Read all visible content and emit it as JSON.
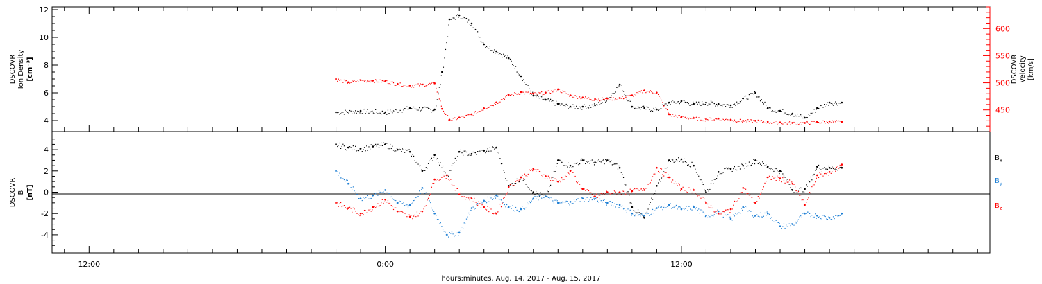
{
  "chart_data": [
    {
      "type": "scatter",
      "panel": "plasma",
      "ylabel_left": [
        "DSCOVR",
        "Ion Density",
        "[cm⁻³]"
      ],
      "ylabel_right": [
        "DSCOVR",
        "Velocity",
        "[km/s]"
      ],
      "ylim_left": [
        3.2,
        12.2
      ],
      "ylim_right": [
        410,
        640
      ],
      "yticks_left": [
        4,
        6,
        8,
        10,
        12
      ],
      "yticks_right": [
        450,
        500,
        550,
        600
      ],
      "colors": {
        "density": "#000000",
        "velocity": "#ff0000"
      },
      "series": [
        {
          "name": "",
          "axis": "left",
          "color": "#000000",
          "x_hours": [
            0,
            1,
            2,
            3,
            4,
            4.3,
            4.6,
            5,
            5.5,
            6,
            6.5,
            7,
            7.5,
            8,
            8.5,
            9,
            9.5,
            10,
            10.5,
            11,
            11.5,
            12,
            12.5,
            13,
            13.5,
            14,
            14.5,
            15,
            15.5,
            16,
            16.5,
            17,
            17.5,
            18,
            18.5,
            19,
            19.5,
            20,
            20.5
          ],
          "values": [
            4.6,
            4.7,
            4.6,
            4.9,
            4.8,
            7.5,
            11.3,
            11.6,
            11.0,
            9.5,
            9.0,
            8.5,
            7.2,
            5.8,
            5.5,
            5.2,
            5.0,
            5.0,
            5.1,
            5.6,
            6.6,
            5.0,
            4.9,
            4.8,
            5.3,
            5.4,
            5.2,
            5.3,
            5.2,
            5.1,
            5.6,
            6.0,
            4.9,
            4.7,
            4.5,
            4.2,
            4.9,
            5.3,
            5.3
          ]
        },
        {
          "name": "",
          "axis": "right",
          "color": "#ff0000",
          "x_hours": [
            0,
            0.5,
            1,
            1.5,
            2,
            2.5,
            3,
            3.5,
            4,
            4.3,
            4.6,
            5,
            5.5,
            6,
            6.5,
            7,
            7.5,
            8,
            8.5,
            9,
            9.5,
            10,
            10.5,
            11,
            11.5,
            12,
            12.5,
            13,
            13.5,
            14,
            14.5,
            15,
            15.5,
            16,
            16.5,
            17,
            17.5,
            18,
            18.5,
            19,
            19.5,
            20,
            20.5
          ],
          "values": [
            507,
            501,
            505,
            504,
            503,
            498,
            495,
            497,
            499,
            452,
            432,
            436,
            442,
            453,
            464,
            478,
            483,
            480,
            482,
            488,
            477,
            473,
            470,
            471,
            472,
            477,
            486,
            482,
            442,
            437,
            435,
            433,
            434,
            432,
            430,
            430,
            428,
            427,
            426,
            426,
            428,
            429,
            428
          ]
        }
      ]
    },
    {
      "type": "scatter",
      "panel": "magnetic",
      "ylabel": [
        "DSCOVR",
        "B",
        "[nT]"
      ],
      "ylim": [
        -5.7,
        5.7
      ],
      "yticks": [
        -4,
        -2,
        0,
        2,
        4
      ],
      "zero_line": true,
      "legend": {
        "placement": "right",
        "entries": [
          {
            "label": "B",
            "sub": "x",
            "color": "#000000"
          },
          {
            "label": "B",
            "sub": "y",
            "color": "#1e7fd4"
          },
          {
            "label": "B",
            "sub": "z",
            "color": "#ff0000"
          }
        ]
      },
      "series": [
        {
          "name": "Bx",
          "color": "#000000",
          "x_hours": [
            0,
            0.5,
            1,
            1.5,
            2,
            2.5,
            3,
            3.5,
            4,
            4.5,
            5,
            5.5,
            6,
            6.5,
            7,
            7.5,
            8,
            8.5,
            9,
            9.5,
            10,
            10.5,
            11,
            11.5,
            12,
            12.5,
            13,
            13.5,
            14,
            14.5,
            15,
            15.5,
            16,
            16.5,
            17,
            17.5,
            18,
            18.5,
            19,
            19.5,
            20,
            20.5
          ],
          "values": [
            4.5,
            4.2,
            4.1,
            4.3,
            4.5,
            4.0,
            3.8,
            2.0,
            3.5,
            1.6,
            3.8,
            3.6,
            3.9,
            4.2,
            0.6,
            1.4,
            0.0,
            -0.4,
            3.0,
            2.5,
            3.0,
            2.8,
            3.0,
            2.3,
            -1.4,
            -2.4,
            0.6,
            3.0,
            3.1,
            2.5,
            0.0,
            1.9,
            2.2,
            2.5,
            3.0,
            2.4,
            2.0,
            0.2,
            0.3,
            2.4,
            2.3,
            2.3
          ]
        },
        {
          "name": "By",
          "color": "#1e7fd4",
          "x_hours": [
            0,
            0.5,
            1,
            1.5,
            2,
            2.5,
            3,
            3.5,
            4,
            4.5,
            5,
            5.5,
            6,
            6.5,
            7,
            7.5,
            8,
            8.5,
            9,
            9.5,
            10,
            10.5,
            11,
            11.5,
            12,
            12.5,
            13,
            13.5,
            14,
            14.5,
            15,
            15.5,
            16,
            16.5,
            17,
            17.5,
            18,
            18.5,
            19,
            19.5,
            20,
            20.5
          ],
          "values": [
            2.0,
            0.8,
            -0.6,
            -0.3,
            0.2,
            -1.0,
            -1.2,
            0.4,
            -2.0,
            -4.0,
            -3.8,
            -1.5,
            -0.8,
            -0.3,
            -1.4,
            -1.6,
            -0.6,
            -0.4,
            -1.0,
            -0.9,
            -0.6,
            -0.6,
            -1.0,
            -1.2,
            -2.0,
            -2.2,
            -1.5,
            -1.2,
            -1.6,
            -1.4,
            -2.2,
            -1.8,
            -2.5,
            -1.4,
            -2.2,
            -2.0,
            -3.2,
            -3.0,
            -2.0,
            -2.2,
            -2.4,
            -2.0
          ]
        },
        {
          "name": "Bz",
          "color": "#ff0000",
          "x_hours": [
            0,
            0.5,
            1,
            1.5,
            2,
            2.5,
            3,
            3.5,
            4,
            4.5,
            5,
            5.5,
            6,
            6.5,
            7,
            7.5,
            8,
            8.5,
            9,
            9.5,
            10,
            10.5,
            11,
            11.5,
            12,
            12.5,
            13,
            13.5,
            14,
            14.5,
            15,
            15.5,
            16,
            16.5,
            17,
            17.5,
            18,
            18.5,
            19,
            19.5,
            20,
            20.5
          ],
          "values": [
            -1.0,
            -1.5,
            -2.0,
            -1.4,
            -0.7,
            -1.8,
            -2.3,
            -1.8,
            1.2,
            1.6,
            -0.2,
            -0.6,
            -1.4,
            -2.0,
            0.5,
            1.4,
            2.2,
            1.5,
            1.0,
            2.0,
            0.3,
            -0.4,
            0.0,
            0.0,
            0.1,
            0.2,
            2.3,
            1.4,
            0.3,
            0.2,
            -1.0,
            -2.0,
            -1.6,
            0.4,
            -1.0,
            1.4,
            1.3,
            0.8,
            -1.2,
            1.6,
            1.9,
            2.6
          ]
        }
      ]
    },
    {
      "type": "axis",
      "xlabel": "hours:minutes, Aug. 14, 2017 - Aug. 15, 2017",
      "tick_labels": [
        "12:00",
        "0:00",
        "12:00"
      ],
      "tick_label_hours": [
        -10,
        2,
        14
      ],
      "xlim_hours": [
        -11.5,
        26.5
      ]
    }
  ]
}
